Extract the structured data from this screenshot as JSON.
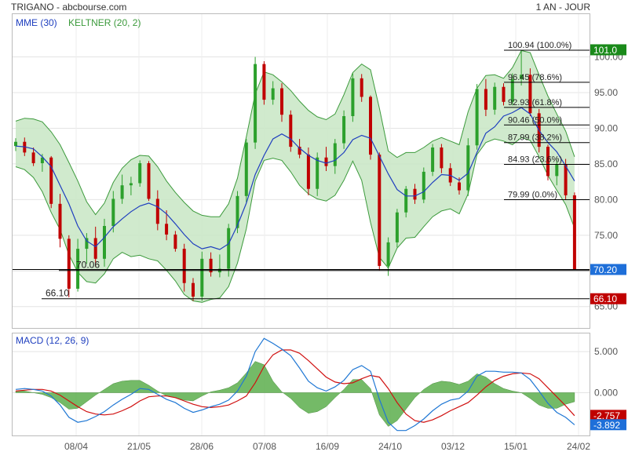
{
  "header": {
    "title": "TRIGANO - abcbourse.com",
    "period": "1 AN - JOUR"
  },
  "legend": {
    "ema": "MME (30)",
    "keltner": "KELTNER (20, 2)",
    "macd": "MACD (12, 26, 9)"
  },
  "colors": {
    "candle_up": "#2ca02c",
    "candle_down": "#c00000",
    "ema_line": "#1f3fbf",
    "keltner_fill": "#c8e6c4",
    "keltner_edge": "#3c9a3c",
    "macd_line": "#1f77d4",
    "signal_line": "#d01010",
    "histogram": "#5cae4c",
    "last_price_badge": "#1e6fd9",
    "level_badge_green": "#1a8a1a",
    "level_badge_red": "#c00000",
    "macd_badge": "#1e6fd9"
  },
  "chart_data": [
    {
      "type": "candlestick",
      "name": "price",
      "x_tick_labels": [
        "08/04",
        "21/05",
        "28/06",
        "07/08",
        "16/09",
        "24/10",
        "03/12",
        "15/01",
        "24/02"
      ],
      "ylim": [
        62,
        106
      ],
      "y_ticks": [
        65,
        70,
        75,
        80,
        85,
        90,
        95,
        100
      ],
      "y_tick_labels": [
        "65.00",
        "70.00",
        "75.00",
        "80.00",
        "85.00",
        "90.00",
        "95.00",
        "100.00"
      ],
      "grid": true,
      "series_ema": [
        87.5,
        87.4,
        87.1,
        86.0,
        84.6,
        82.0,
        79.4,
        76.3,
        74.2,
        73.4,
        74.7,
        76.2,
        77.3,
        78.3,
        79.1,
        79.5,
        79.0,
        78.0,
        76.6,
        75.1,
        73.8,
        73.1,
        73.4,
        73.0,
        73.8,
        76.4,
        79.5,
        83.5,
        86.2,
        88.5,
        89.2,
        88.5,
        87.2,
        86.2,
        85.5,
        85.1,
        85.5,
        86.6,
        88.4,
        89.0,
        88.6,
        86.1,
        83.6,
        81.4,
        80.5,
        80.5,
        81.1,
        82.4,
        83.5,
        83.4,
        82.7,
        83.7,
        86.6,
        89.3,
        90.2,
        91.7,
        92.2,
        92.9,
        92.0,
        89.7,
        88.0,
        86.7,
        84.7,
        82.6
      ],
      "keltner_upper": [
        91.0,
        91.4,
        91.3,
        90.9,
        89.5,
        87.7,
        85.2,
        82.6,
        79.7,
        77.9,
        79.5,
        82.4,
        84.4,
        85.6,
        86.2,
        86.1,
        84.6,
        82.6,
        81.0,
        79.6,
        78.4,
        77.8,
        77.6,
        77.6,
        79.4,
        83.0,
        88.8,
        94.8,
        97.9,
        97.5,
        96.5,
        95.3,
        93.8,
        92.5,
        91.6,
        91.2,
        92.0,
        94.7,
        97.8,
        99.0,
        98.2,
        92.8,
        86.8,
        85.9,
        86.6,
        86.6,
        87.3,
        88.2,
        88.7,
        88.2,
        87.7,
        92.3,
        95.6,
        97.4,
        97.5,
        97.0,
        98.5,
        100.9,
        100.6,
        97.5,
        94.5,
        92.0,
        89.6,
        86.0
      ],
      "keltner_lower": [
        84.6,
        84.2,
        83.1,
        81.1,
        78.2,
        75.8,
        72.3,
        69.8,
        68.5,
        68.3,
        69.6,
        71.7,
        72.6,
        72.0,
        72.2,
        71.7,
        71.4,
        70.1,
        68.6,
        66.7,
        65.8,
        65.6,
        66.0,
        66.2,
        67.8,
        71.1,
        75.9,
        82.6,
        85.5,
        85.8,
        85.5,
        83.9,
        82.0,
        80.8,
        80.1,
        79.8,
        80.6,
        82.7,
        85.4,
        82.7,
        76.8,
        71.9,
        70.4,
        73.2,
        74.6,
        74.7,
        76.2,
        77.6,
        78.4,
        78.7,
        78.0,
        80.8,
        86.3,
        88.0,
        88.5,
        88.2,
        87.7,
        88.7,
        88.3,
        86.0,
        83.4,
        81.3,
        79.3,
        76.0
      ],
      "candles": [
        [
          87.5,
          88.6,
          86.8,
          88.1
        ],
        [
          88.1,
          88.7,
          86.1,
          86.6
        ],
        [
          86.6,
          87.3,
          84.7,
          85.1
        ],
        [
          85.1,
          86.4,
          83.9,
          85.9
        ],
        [
          85.9,
          86.1,
          78.8,
          79.4
        ],
        [
          79.4,
          80.8,
          73.3,
          74.5
        ],
        [
          74.5,
          75.0,
          66.3,
          67.5
        ],
        [
          67.5,
          74.5,
          67.1,
          73.1
        ],
        [
          73.1,
          75.3,
          71.0,
          74.6
        ],
        [
          74.6,
          76.2,
          70.6,
          71.7
        ],
        [
          71.7,
          77.3,
          70.6,
          76.3
        ],
        [
          76.3,
          81.2,
          75.4,
          80.1
        ],
        [
          80.1,
          83.5,
          79.4,
          82.0
        ],
        [
          82.0,
          83.2,
          80.6,
          82.3
        ],
        [
          82.3,
          85.5,
          81.8,
          85.1
        ],
        [
          85.1,
          85.4,
          79.8,
          80.1
        ],
        [
          80.1,
          81.3,
          75.7,
          76.6
        ],
        [
          76.6,
          78.5,
          74.3,
          75.1
        ],
        [
          75.1,
          75.6,
          72.7,
          73.1
        ],
        [
          73.1,
          73.8,
          67.1,
          68.3
        ],
        [
          68.3,
          69.0,
          65.8,
          66.4
        ],
        [
          66.4,
          72.7,
          65.8,
          71.7
        ],
        [
          71.7,
          72.6,
          69.2,
          69.8
        ],
        [
          69.8,
          72.3,
          69.1,
          70.3
        ],
        [
          70.3,
          76.6,
          69.2,
          76.0
        ],
        [
          76.0,
          81.2,
          75.3,
          80.5
        ],
        [
          80.5,
          88.5,
          79.6,
          88.0
        ],
        [
          88.0,
          100.0,
          87.1,
          99.0
        ],
        [
          99.0,
          99.4,
          93.3,
          94.0
        ],
        [
          94.0,
          96.6,
          93.3,
          95.6
        ],
        [
          95.6,
          96.3,
          90.9,
          91.9
        ],
        [
          91.9,
          92.5,
          86.7,
          87.4
        ],
        [
          87.4,
          88.5,
          85.8,
          86.3
        ],
        [
          86.3,
          87.3,
          80.6,
          81.5
        ],
        [
          81.5,
          86.6,
          80.5,
          85.9
        ],
        [
          85.9,
          87.4,
          84.0,
          84.7
        ],
        [
          84.7,
          88.5,
          83.6,
          87.9
        ],
        [
          87.9,
          92.5,
          87.1,
          91.7
        ],
        [
          91.7,
          97.7,
          90.9,
          97.0
        ],
        [
          97.0,
          97.6,
          93.7,
          94.4
        ],
        [
          94.4,
          94.6,
          85.6,
          86.3
        ],
        [
          86.3,
          86.6,
          70.1,
          70.7
        ],
        [
          70.7,
          74.7,
          69.3,
          74.0
        ],
        [
          74.0,
          78.7,
          73.3,
          78.2
        ],
        [
          78.2,
          81.9,
          77.5,
          81.5
        ],
        [
          81.5,
          82.2,
          79.4,
          80.0
        ],
        [
          80.0,
          84.5,
          79.5,
          83.9
        ],
        [
          83.9,
          87.8,
          83.3,
          87.3
        ],
        [
          87.3,
          87.8,
          83.7,
          84.4
        ],
        [
          84.4,
          85.1,
          81.9,
          82.4
        ],
        [
          82.4,
          83.1,
          80.7,
          81.3
        ],
        [
          81.3,
          88.6,
          80.5,
          87.6
        ],
        [
          87.6,
          96.2,
          87.0,
          95.5
        ],
        [
          95.5,
          96.9,
          91.7,
          92.6
        ],
        [
          92.6,
          96.4,
          91.9,
          95.8
        ],
        [
          95.8,
          96.3,
          93.2,
          93.7
        ],
        [
          93.7,
          97.7,
          93.2,
          96.9
        ],
        [
          96.9,
          101.0,
          96.0,
          97.5
        ],
        [
          97.5,
          98.4,
          91.7,
          92.1
        ],
        [
          92.1,
          92.7,
          86.6,
          87.4
        ],
        [
          87.4,
          87.7,
          82.7,
          83.3
        ],
        [
          83.3,
          85.6,
          82.0,
          84.9
        ],
        [
          84.9,
          85.7,
          80.0,
          80.6
        ],
        [
          80.6,
          81.0,
          70.2,
          70.2
        ]
      ],
      "reference_lines": [
        {
          "value": 70.06,
          "label": "70.06"
        },
        {
          "value": 66.1,
          "label": "66.10"
        },
        {
          "value": 70.2,
          "label": ""
        }
      ],
      "fibonacci": [
        {
          "value": 100.94,
          "label": "100.94 (100.0%)"
        },
        {
          "value": 96.45,
          "label": "96.45 (78.6%)"
        },
        {
          "value": 92.93,
          "label": "92.93 (61.8%)"
        },
        {
          "value": 90.46,
          "label": "90.46 (50.0%)"
        },
        {
          "value": 87.99,
          "label": "87.99 (38.2%)"
        },
        {
          "value": 84.93,
          "label": "84.93 (23.6%)"
        },
        {
          "value": 79.99,
          "label": "79.99 (0.0%)"
        }
      ],
      "badges": [
        {
          "value": 101.0,
          "label": "101.0",
          "color": "#1a8a1a"
        },
        {
          "value": 70.2,
          "label": "70.20",
          "color": "#1e6fd9"
        },
        {
          "value": 66.1,
          "label": "66.10",
          "color": "#c00000"
        }
      ]
    },
    {
      "type": "line",
      "name": "MACD",
      "ylim": [
        -5.2,
        7.2
      ],
      "y_ticks": [
        0,
        5
      ],
      "y_tick_labels": [
        "0.000",
        "5.000"
      ],
      "grid": true,
      "macd": [
        0.4,
        0.5,
        0.4,
        0.2,
        -0.4,
        -1.5,
        -3.0,
        -3.6,
        -3.4,
        -2.9,
        -2.3,
        -1.5,
        -0.8,
        -0.2,
        0.5,
        0.4,
        -0.2,
        -0.8,
        -1.2,
        -1.9,
        -2.4,
        -2.1,
        -1.7,
        -1.4,
        -0.9,
        0.2,
        2.0,
        5.0,
        6.6,
        6.0,
        5.3,
        4.5,
        3.0,
        1.4,
        0.6,
        0.2,
        0.7,
        1.5,
        2.8,
        3.3,
        2.6,
        -0.8,
        -3.6,
        -4.6,
        -4.6,
        -4.0,
        -3.2,
        -2.2,
        -1.4,
        -0.9,
        -0.7,
        0.2,
        2.0,
        2.6,
        2.6,
        2.5,
        2.5,
        2.4,
        1.6,
        0.2,
        -1.3,
        -2.4,
        -3.0,
        -3.9
      ],
      "signal": [
        0.2,
        0.3,
        0.4,
        0.4,
        0.2,
        -0.3,
        -1.0,
        -1.7,
        -2.3,
        -2.6,
        -2.7,
        -2.6,
        -2.2,
        -1.7,
        -1.0,
        -0.5,
        -0.4,
        -0.4,
        -0.6,
        -1.0,
        -1.4,
        -1.7,
        -1.8,
        -1.7,
        -1.5,
        -1.0,
        -0.4,
        1.2,
        3.2,
        4.6,
        5.2,
        5.2,
        4.8,
        3.9,
        2.9,
        1.9,
        1.3,
        1.1,
        1.2,
        1.7,
        2.1,
        1.9,
        0.5,
        -1.2,
        -2.6,
        -3.4,
        -3.6,
        -3.3,
        -2.8,
        -2.2,
        -1.7,
        -1.2,
        -0.3,
        0.7,
        1.5,
        2.0,
        2.3,
        2.4,
        2.3,
        1.7,
        0.6,
        -0.5,
        -1.6,
        -2.8
      ],
      "histogram": [
        0.2,
        0.2,
        0.0,
        -0.2,
        -0.6,
        -1.2,
        -2.0,
        -1.9,
        -1.1,
        -0.3,
        0.4,
        1.1,
        1.4,
        1.5,
        1.5,
        0.9,
        0.2,
        -0.4,
        -0.6,
        -0.9,
        -1.0,
        -0.4,
        0.1,
        0.3,
        0.6,
        1.2,
        2.4,
        3.8,
        3.4,
        1.4,
        0.1,
        -0.7,
        -1.8,
        -2.5,
        -2.3,
        -1.7,
        -0.6,
        0.4,
        1.6,
        1.6,
        0.5,
        -2.7,
        -4.1,
        -3.4,
        -2.0,
        -0.6,
        0.4,
        1.1,
        1.4,
        1.3,
        1.0,
        1.4,
        2.3,
        1.9,
        1.1,
        0.5,
        0.2,
        0.0,
        -0.7,
        -1.5,
        -1.9,
        -1.9,
        -1.4,
        -1.1
      ],
      "badges": [
        {
          "value": -2.757,
          "label": "-2.757",
          "color": "#c00000"
        },
        {
          "value": -3.892,
          "label": "-3.892",
          "color": "#1e6fd9"
        }
      ]
    }
  ]
}
